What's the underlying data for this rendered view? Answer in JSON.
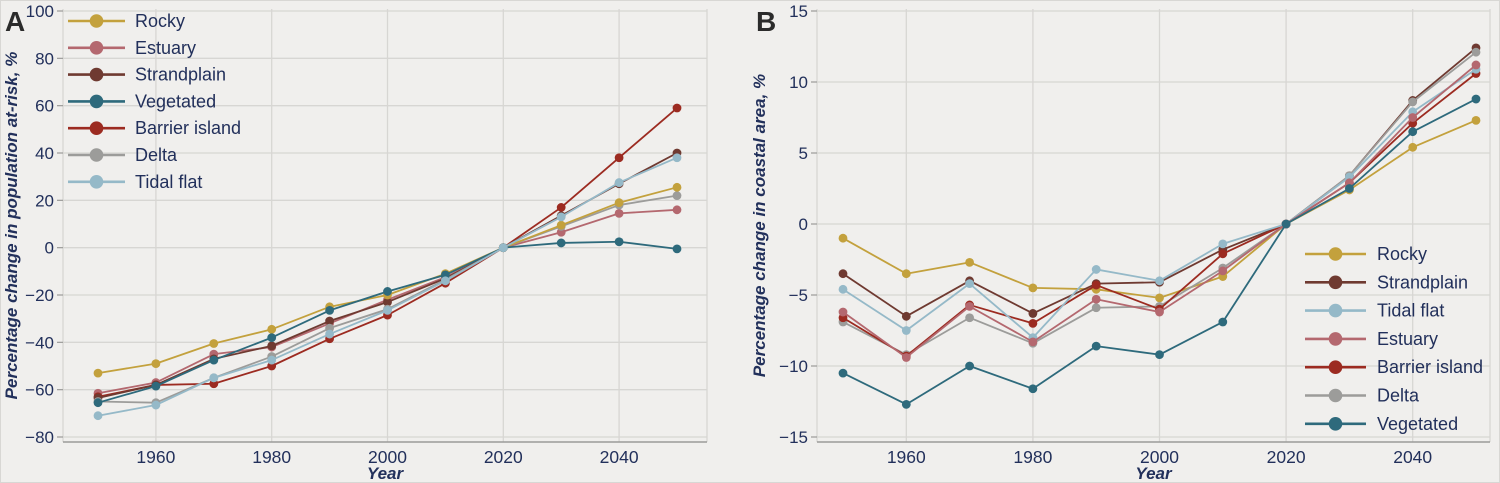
{
  "figure": {
    "background": "#f0efed",
    "border_color": "#d8d7d4",
    "grid_color": "#d7d6d3",
    "axis_line_color": "#9b9b99",
    "tick_text_color": "#22305b",
    "label_text_color": "#22305b",
    "panel_letter_color": "#2b2b2b"
  },
  "series_colors": {
    "Rocky": "#c3a13d",
    "Estuary": "#b4686f",
    "Strandplain": "#6f3a31",
    "Vegetated": "#2e6a7c",
    "Barrier island": "#9c2b21",
    "Delta": "#9c9c9a",
    "Tidal flat": "#95b9c8"
  },
  "chart_data": [
    {
      "type": "line",
      "panel_label": "A",
      "xlabel": "Year",
      "ylabel": "Percentage change in population at-risk, %",
      "x": [
        1950,
        1960,
        1970,
        1980,
        1990,
        2000,
        2010,
        2020,
        2030,
        2040,
        2050
      ],
      "xticks": [
        1960,
        1980,
        2000,
        2020,
        2040
      ],
      "yticks": [
        100,
        80,
        60,
        40,
        20,
        0,
        -20,
        -40,
        -60,
        -80
      ],
      "ylim": [
        -80,
        100
      ],
      "xlim": [
        1944,
        2056
      ],
      "grid": true,
      "legend_position": "top-left",
      "legend_order": [
        "Rocky",
        "Estuary",
        "Strandplain",
        "Vegetated",
        "Barrier island",
        "Delta",
        "Tidal flat"
      ],
      "series": [
        {
          "name": "Estuary",
          "color": "#b4686f",
          "values": [
            -61.5,
            -57,
            -45,
            -42,
            -32,
            -22,
            -12.5,
            0,
            6.5,
            14.5,
            16
          ]
        },
        {
          "name": "Barrier island",
          "color": "#9c2b21",
          "values": [
            -63,
            -58,
            -57.5,
            -50,
            -38.5,
            -28.5,
            -15,
            0,
            17,
            38,
            59
          ]
        },
        {
          "name": "Strandplain",
          "color": "#6f3a31",
          "values": [
            -63.5,
            -58,
            -47,
            -41.5,
            -31,
            -23,
            -13,
            0,
            13.5,
            27,
            40
          ]
        },
        {
          "name": "Delta",
          "color": "#9c9c9a",
          "values": [
            -65,
            -65.5,
            -55,
            -46,
            -34,
            -26,
            -13.5,
            0,
            9,
            18,
            22
          ]
        },
        {
          "name": "Rocky",
          "color": "#c3a13d",
          "values": [
            -53,
            -49,
            -40.5,
            -34.5,
            -25,
            -20,
            -11,
            0,
            9.5,
            19,
            25.5
          ]
        },
        {
          "name": "Vegetated",
          "color": "#2e6a7c",
          "values": [
            -65.5,
            -58.5,
            -47.5,
            -38,
            -26.5,
            -18.5,
            -11.5,
            0,
            2,
            2.5,
            -0.5
          ]
        },
        {
          "name": "Tidal flat",
          "color": "#95b9c8",
          "values": [
            -71,
            -66.5,
            -55,
            -47.5,
            -36.5,
            -26.5,
            -14,
            0,
            13,
            27.5,
            38
          ]
        }
      ]
    },
    {
      "type": "line",
      "panel_label": "B",
      "xlabel": "Year",
      "ylabel": "Percentage change in coastal area, %",
      "x": [
        1950,
        1960,
        1970,
        1980,
        1990,
        2000,
        2010,
        2020,
        2030,
        2040,
        2050
      ],
      "xticks": [
        1960,
        1980,
        2000,
        2020,
        2040
      ],
      "yticks": [
        15,
        10,
        5,
        0,
        -5,
        -10,
        -15
      ],
      "ylim": [
        -15,
        15
      ],
      "xlim": [
        1944,
        2056
      ],
      "grid": true,
      "legend_position": "bottom-right",
      "legend_order": [
        "Rocky",
        "Strandplain",
        "Tidal flat",
        "Estuary",
        "Barrier island",
        "Delta",
        "Vegetated"
      ],
      "series": [
        {
          "name": "Rocky",
          "color": "#c3a13d",
          "values": [
            -1,
            -3.5,
            -2.7,
            -4.5,
            -4.6,
            -5.2,
            -3.7,
            0,
            2.4,
            5.4,
            7.3
          ]
        },
        {
          "name": "Strandplain",
          "color": "#6f3a31",
          "values": [
            -3.5,
            -6.5,
            -4,
            -6.3,
            -4.2,
            -4.1,
            -1.8,
            0,
            3.4,
            8.7,
            12.4
          ]
        },
        {
          "name": "Delta",
          "color": "#9c9c9a",
          "values": [
            -6.9,
            -9.2,
            -6.6,
            -8.4,
            -5.9,
            -5.8,
            -3.1,
            0,
            3.4,
            8.6,
            12.1
          ]
        },
        {
          "name": "Barrier island",
          "color": "#9c2b21",
          "values": [
            -6.6,
            -9.3,
            -5.7,
            -7,
            -4.3,
            -6,
            -2.1,
            0,
            2.9,
            7.1,
            10.6
          ]
        },
        {
          "name": "Tidal flat",
          "color": "#95b9c8",
          "values": [
            -4.6,
            -7.5,
            -4.2,
            -8,
            -3.2,
            -4,
            -1.4,
            0,
            3.3,
            7.9,
            10.9
          ]
        },
        {
          "name": "Estuary",
          "color": "#b4686f",
          "values": [
            -6.2,
            -9.4,
            -5.8,
            -8.3,
            -5.3,
            -6.2,
            -3.3,
            0,
            2.9,
            7.5,
            11.2
          ]
        },
        {
          "name": "Vegetated",
          "color": "#2e6a7c",
          "values": [
            -10.5,
            -12.7,
            -10,
            -11.6,
            -8.6,
            -9.2,
            -6.9,
            0,
            2.5,
            6.5,
            8.8
          ]
        }
      ]
    }
  ]
}
